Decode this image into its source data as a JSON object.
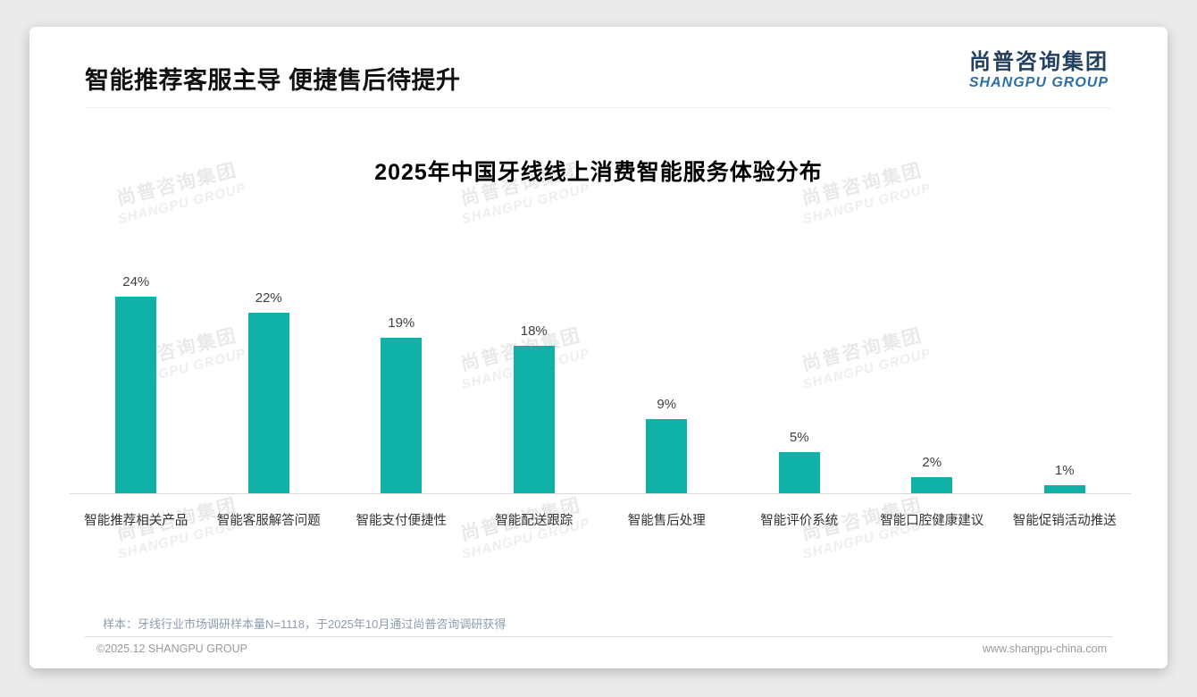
{
  "header": {
    "title": "智能推荐客服主导 便捷售后待提升",
    "logo": {
      "chinese": "尚普咨询集团",
      "english": "SHANGPU GROUP"
    }
  },
  "chart_data": {
    "type": "bar",
    "title": "2025年中国牙线线上消费智能服务体验分布",
    "categories": [
      "智能推荐相关产品",
      "智能客服解答问题",
      "智能支付便捷性",
      "智能配送跟踪",
      "智能售后处理",
      "智能评价系统",
      "智能口腔健康建议",
      "智能促销活动推送"
    ],
    "values": [
      24,
      22,
      19,
      18,
      9,
      5,
      2,
      1
    ],
    "value_suffix": "%",
    "xlabel": "",
    "ylabel": "",
    "ylim": [
      0,
      24
    ],
    "grid": false,
    "legend": "none",
    "bar_color": "#10b2a8",
    "value_label_position": "above-bar"
  },
  "watermark": {
    "line1": "尚普咨询集团",
    "line2": "SHANGPU GROUP"
  },
  "footer": {
    "sample_note": "样本：牙线行业市场调研样本量N=1118，于2025年10月通过尚普咨询调研获得",
    "copyright": "©2025.12 SHANGPU GROUP",
    "website": "www.shangpu-china.com"
  },
  "colors": {
    "bar": "#10b2a8",
    "logo_chinese": "#24405f",
    "logo_english": "#2d6ea5",
    "axis_line": "#d9d9d9"
  }
}
